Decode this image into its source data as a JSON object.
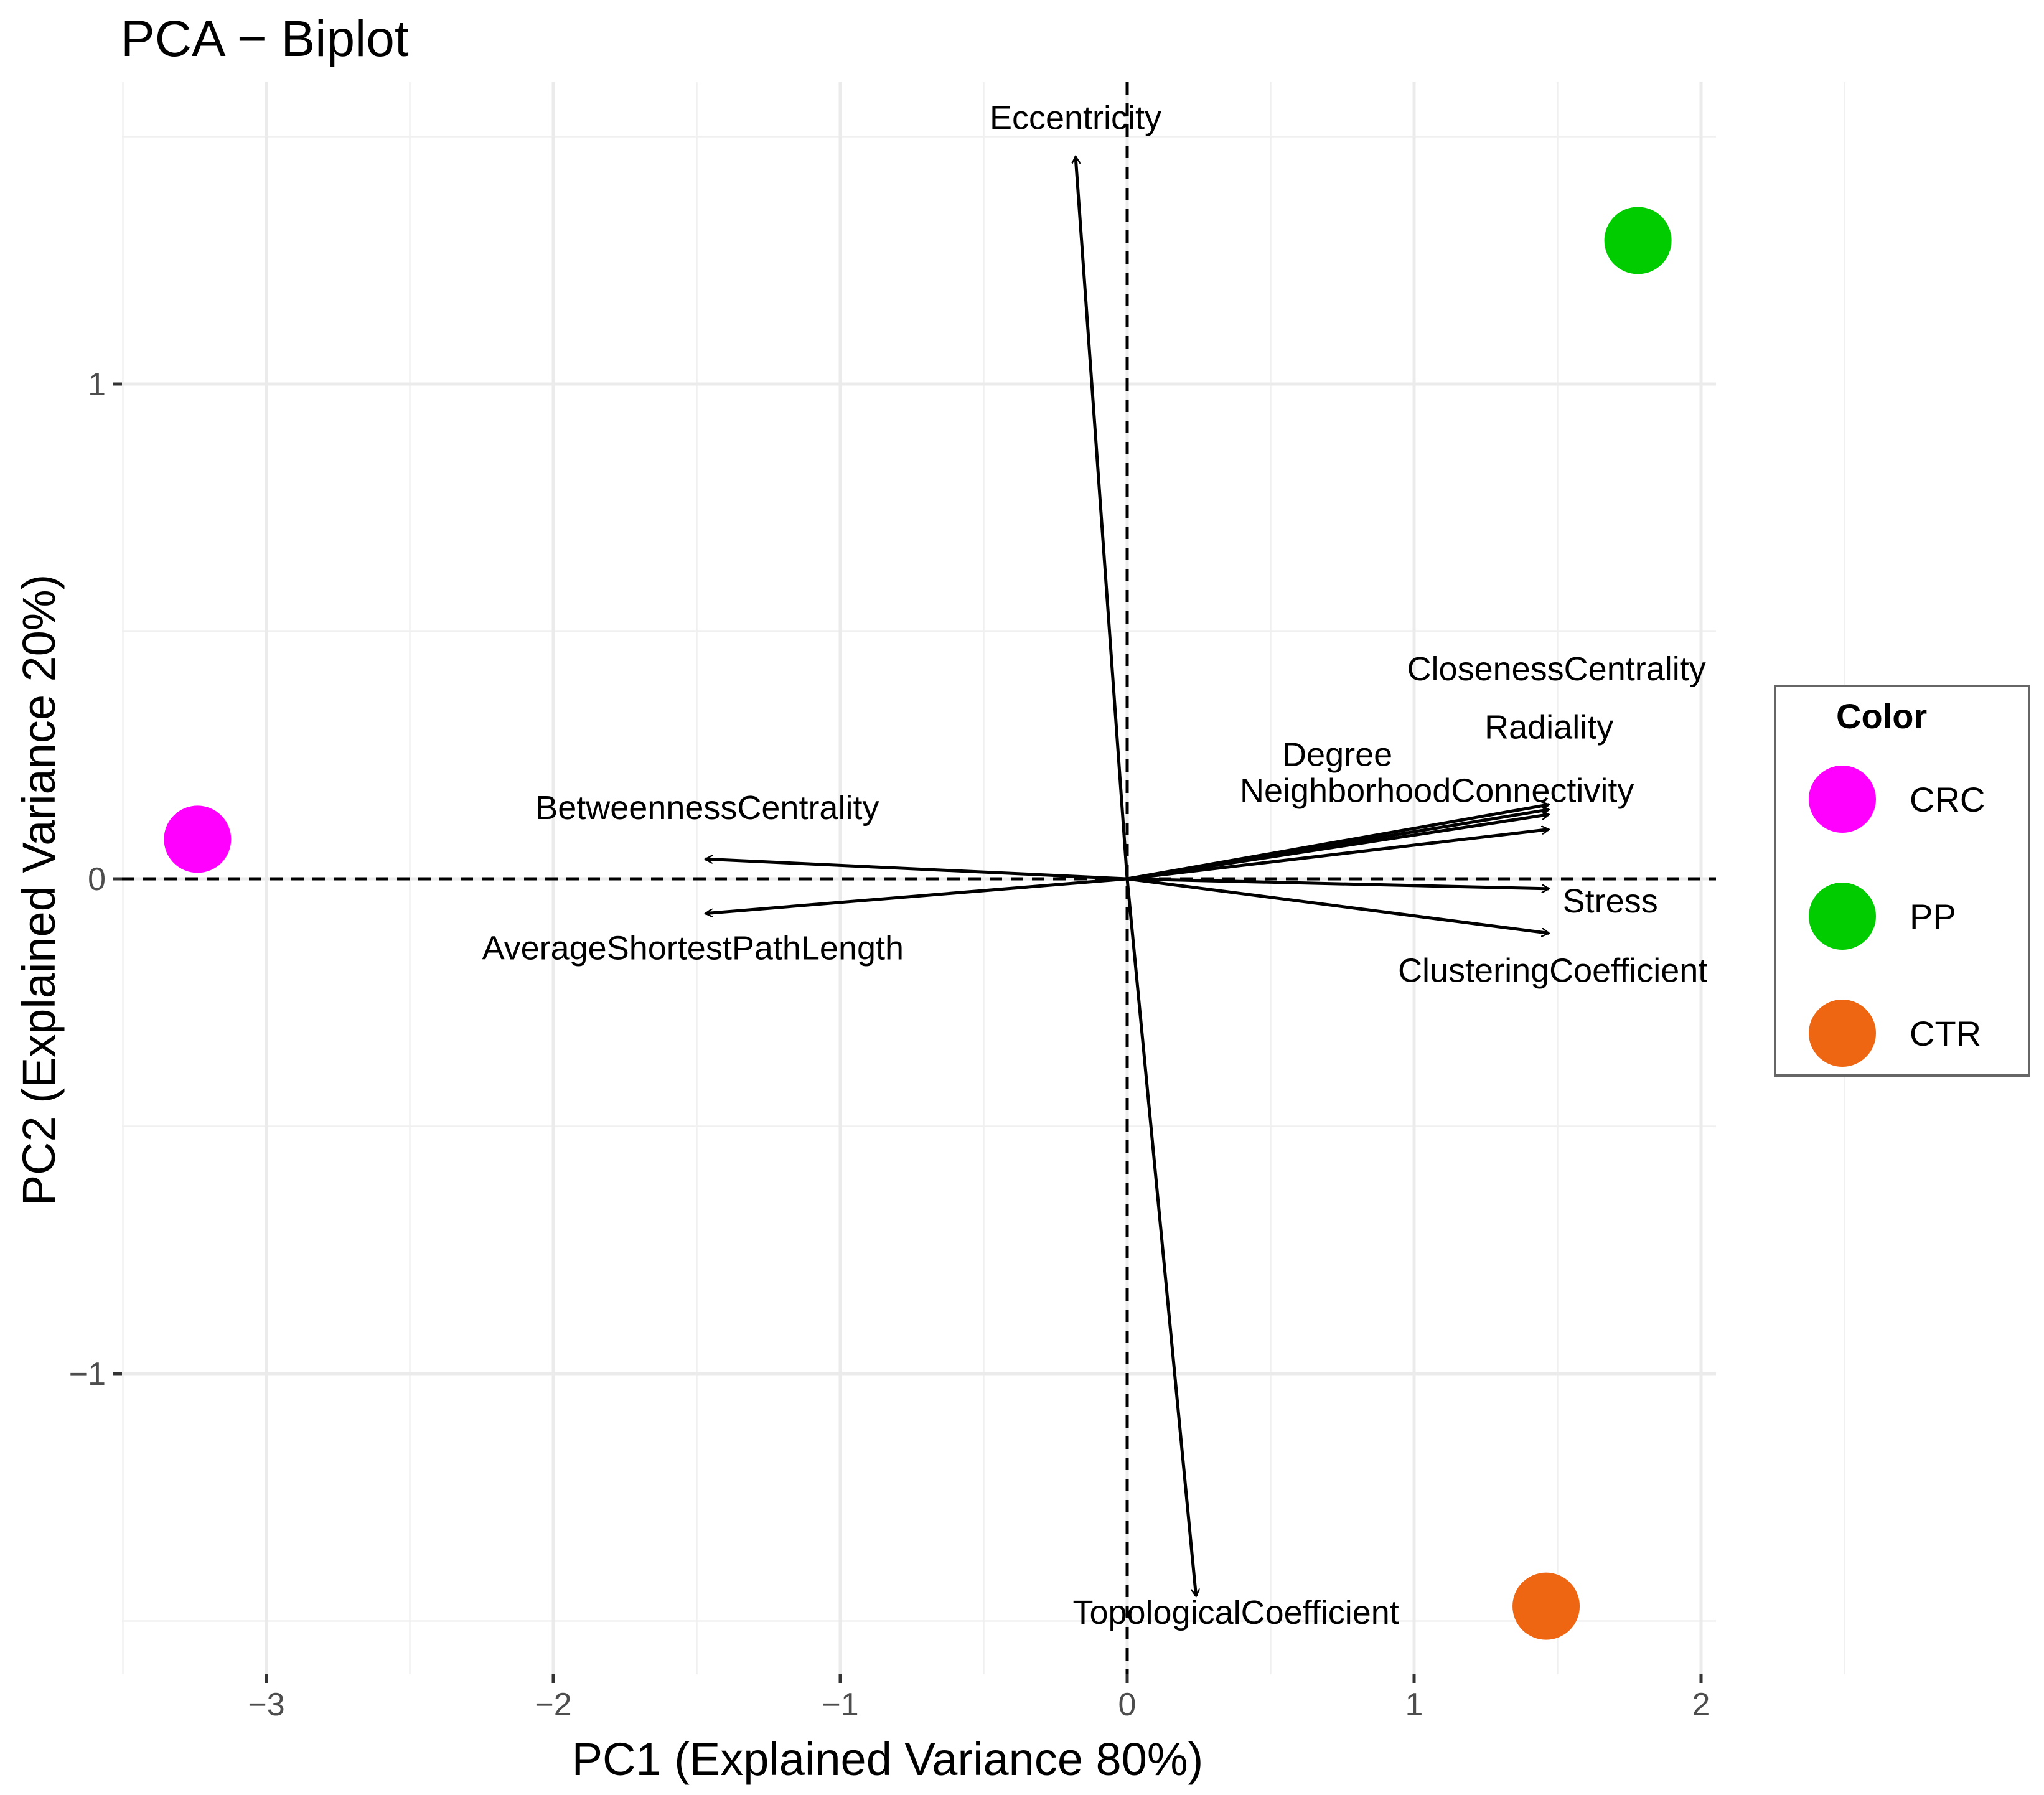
{
  "chart_data": {
    "type": "scatter",
    "title": "PCA − Biplot",
    "xlabel": "PC1 (Explained Variance 80%)",
    "ylabel": "PC2 (Explained Variance 20%)",
    "xlim": [
      -3.5,
      2.05
    ],
    "ylim": [
      -1.6,
      1.7
    ],
    "x_ticks": [
      -3,
      -2,
      -1,
      0,
      1,
      2
    ],
    "x_tick_labels": [
      "−3",
      "−2",
      "−1",
      "0",
      "1",
      "2"
    ],
    "y_ticks": [
      -1,
      0,
      1
    ],
    "y_tick_labels": [
      "−1",
      "0",
      "1"
    ],
    "grid": true,
    "reference_lines": {
      "x": 0,
      "y": 0,
      "style": "dashed"
    },
    "points": [
      {
        "label": "CRC",
        "x": -3.24,
        "y": 0.08,
        "color": "#FF00FF"
      },
      {
        "label": "PP",
        "x": 1.78,
        "y": 1.29,
        "color": "#00CC00"
      },
      {
        "label": "CTR",
        "x": 1.46,
        "y": -1.47,
        "color": "#EE6611"
      }
    ],
    "loadings": [
      {
        "name": "Eccentricity",
        "x": -0.18,
        "y": 1.46
      },
      {
        "name": "ClosenessCentrality",
        "x": 1.47,
        "y": 0.15
      },
      {
        "name": "Radiality",
        "x": 1.47,
        "y": 0.14
      },
      {
        "name": "Degree",
        "x": 1.47,
        "y": 0.13
      },
      {
        "name": "NeighborhoodConnectivity",
        "x": 1.47,
        "y": 0.1
      },
      {
        "name": "Stress",
        "x": 1.47,
        "y": -0.02
      },
      {
        "name": "ClusteringCoefficient",
        "x": 1.47,
        "y": -0.11
      },
      {
        "name": "BetweennessCentrality",
        "x": -1.47,
        "y": 0.04
      },
      {
        "name": "AverageShortestPathLength",
        "x": -1.47,
        "y": -0.07
      },
      {
        "name": "TopologicalCoefficient",
        "x": 0.24,
        "y": -1.45
      }
    ],
    "legend": {
      "title": "Color",
      "position": "right",
      "entries": [
        {
          "label": "CRC",
          "color": "#FF00FF"
        },
        {
          "label": "PP",
          "color": "#00CC00"
        },
        {
          "label": "CTR",
          "color": "#EE6611"
        }
      ]
    }
  }
}
